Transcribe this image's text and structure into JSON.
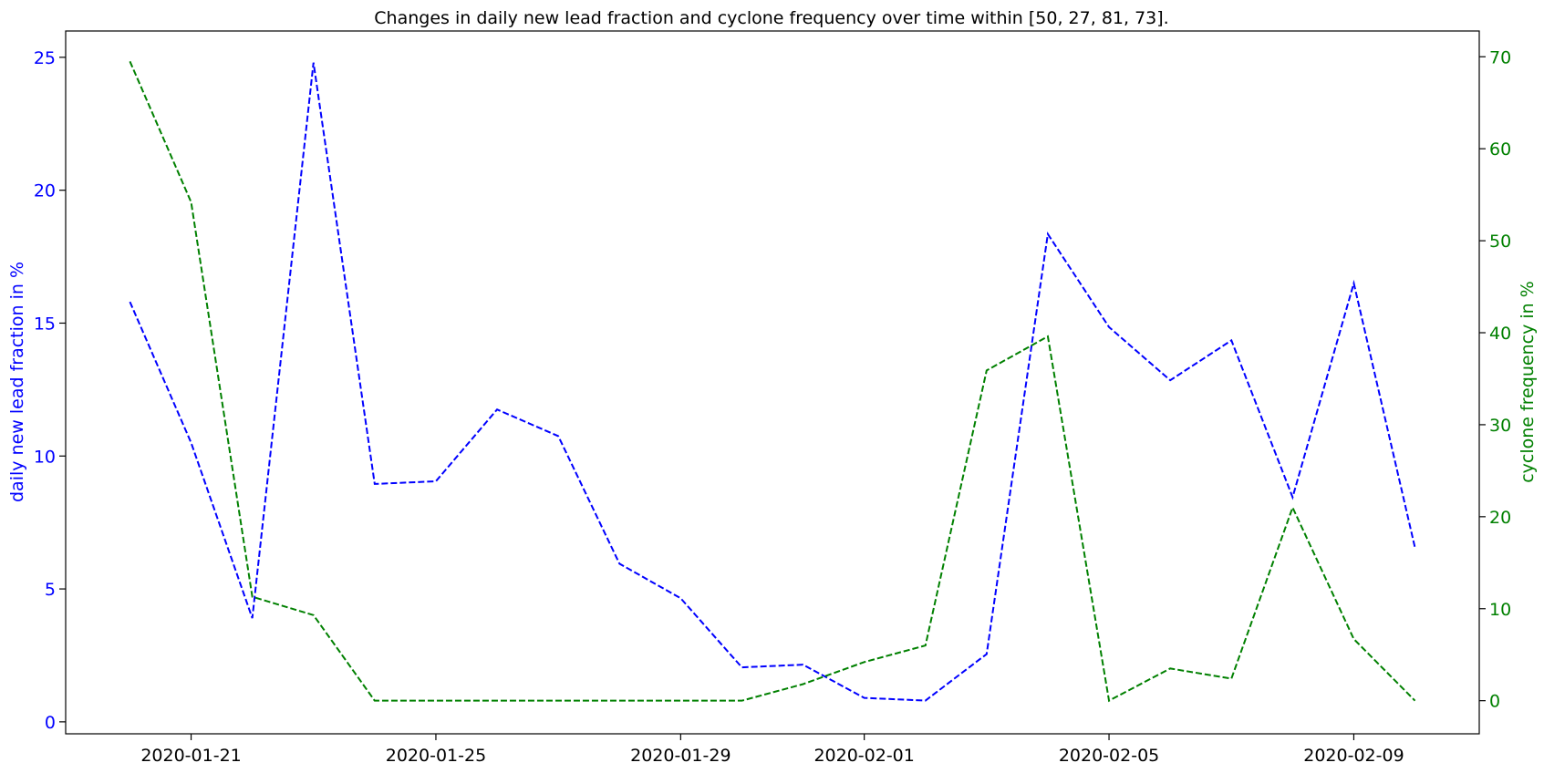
{
  "chart_data": {
    "type": "line",
    "title": "Changes in daily new lead fraction and cyclone frequency over time within [50, 27, 81, 73].",
    "x": [
      "2020-01-20",
      "2020-01-21",
      "2020-01-22",
      "2020-01-23",
      "2020-01-24",
      "2020-01-25",
      "2020-01-26",
      "2020-01-27",
      "2020-01-28",
      "2020-01-29",
      "2020-01-30",
      "2020-01-31",
      "2020-02-01",
      "2020-02-02",
      "2020-02-03",
      "2020-02-04",
      "2020-02-05",
      "2020-02-06",
      "2020-02-07",
      "2020-02-08",
      "2020-02-09",
      "2020-02-10"
    ],
    "xticks": [
      "2020-01-21",
      "2020-01-25",
      "2020-01-29",
      "2020-02-01",
      "2020-02-05",
      "2020-02-09"
    ],
    "left_axis": {
      "label": "daily new lead fraction in %",
      "ylim": [
        -0.45,
        25.99
      ],
      "ticks": [
        0,
        5,
        10,
        15,
        20,
        25
      ],
      "tick_labels": [
        "0",
        "5",
        "10",
        "15",
        "20",
        "25"
      ],
      "color": "#0000ff"
    },
    "right_axis": {
      "label": "cyclone frequency in %",
      "ylim": [
        -3.6,
        72.8
      ],
      "ticks": [
        0,
        10,
        20,
        30,
        40,
        50,
        60,
        70
      ],
      "tick_labels": [
        "0",
        "10",
        "20",
        "30",
        "40",
        "50",
        "60",
        "70"
      ],
      "color": "#008000"
    },
    "series": [
      {
        "axis": "left",
        "color": "#0000ff",
        "style": "dashed",
        "values": [
          15.8,
          10.5,
          3.9,
          24.8,
          8.95,
          9.05,
          11.75,
          10.75,
          5.95,
          4.65,
          2.05,
          2.15,
          0.9,
          0.8,
          2.55,
          18.35,
          14.85,
          12.85,
          14.35,
          8.45,
          16.5,
          6.55
        ]
      },
      {
        "axis": "right",
        "color": "#008000",
        "style": "dashed",
        "values": [
          69.5,
          54.2,
          11.3,
          9.3,
          0.0,
          0.0,
          0.0,
          0.0,
          0.0,
          0.0,
          0.0,
          1.8,
          4.2,
          6.0,
          35.9,
          39.6,
          0.0,
          3.5,
          2.4,
          21.0,
          6.7,
          0.0
        ]
      }
    ],
    "grid": false,
    "legend": "none"
  }
}
